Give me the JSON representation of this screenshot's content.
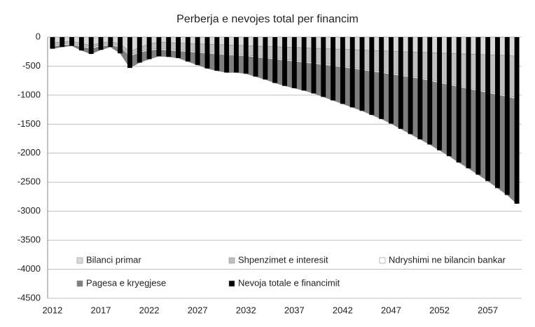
{
  "chart_data": {
    "type": "combo",
    "title": "Perberja e nevojes total per financim",
    "categories": [
      "2012",
      null,
      null,
      null,
      null,
      "2017",
      null,
      null,
      null,
      null,
      "2022",
      null,
      null,
      null,
      null,
      "2027",
      null,
      null,
      null,
      null,
      "2032",
      null,
      null,
      null,
      null,
      "2037",
      null,
      null,
      null,
      null,
      "2042",
      null,
      null,
      null,
      null,
      "2047",
      null,
      null,
      null,
      null,
      "2052",
      null,
      null,
      null,
      null,
      "2057",
      null,
      null,
      null
    ],
    "series": [
      {
        "name": "Bilanci primar",
        "type": "area",
        "color": "#d9d9d9",
        "values": [
          -100,
          -80,
          -70,
          -110,
          -140,
          -100,
          -80,
          -120,
          -250,
          -180,
          -120,
          -90,
          -96,
          -103,
          -109,
          -115,
          -122,
          -128,
          -135,
          -141,
          -147,
          -154,
          -160,
          -166,
          -173,
          -179,
          -185,
          -192,
          -198,
          -204,
          -211,
          -217,
          -223,
          -230,
          -236,
          -242,
          -249,
          -255,
          -261,
          -268,
          -274,
          -280,
          -287,
          -293,
          -299,
          -306,
          -312,
          -318,
          -330
        ]
      },
      {
        "name": "Shpenzimet e interesit",
        "type": "area",
        "color": "#bfbfbf",
        "values": [
          -40,
          -40,
          -40,
          -40,
          -40,
          -40,
          -40,
          -40,
          -60,
          -70,
          -90,
          -110,
          -115,
          -121,
          -127,
          -133,
          -139,
          -145,
          -151,
          -157,
          -163,
          -174,
          -185,
          -197,
          -209,
          -221,
          -234,
          -247,
          -260,
          -274,
          -289,
          -306,
          -324,
          -342,
          -361,
          -380,
          -399,
          -418,
          -438,
          -467,
          -496,
          -523,
          -551,
          -579,
          -607,
          -635,
          -663,
          -691,
          -720
        ]
      },
      {
        "name": "Ndryshimi ne bilancin bankar",
        "type": "area",
        "color": "#ffffff",
        "values": [
          -20,
          -20,
          -20,
          -20,
          -20,
          -20,
          -20,
          -20,
          -20,
          -20,
          -20,
          -20,
          -20,
          -20,
          -20,
          -20,
          -20,
          -20,
          -20,
          -20,
          -20,
          -20,
          -20,
          -20,
          -20,
          -20,
          -20,
          -20,
          -20,
          -20,
          -20,
          -20,
          -20,
          -20,
          -20,
          -20,
          -20,
          -20,
          -20,
          -20,
          -20,
          -20,
          -20,
          -20,
          -20,
          -20,
          -20,
          -20,
          -20
        ]
      },
      {
        "name": "Pagesa e kryegjese",
        "type": "area",
        "color": "#7f7f7f",
        "values": [
          -40,
          -30,
          -20,
          -60,
          -90,
          -60,
          -30,
          -100,
          -200,
          -170,
          -150,
          -110,
          -109,
          -116,
          -164,
          -212,
          -259,
          -287,
          -304,
          -292,
          -300,
          -332,
          -365,
          -407,
          -438,
          -460,
          -481,
          -511,
          -552,
          -592,
          -630,
          -667,
          -703,
          -748,
          -793,
          -848,
          -912,
          -977,
          -1041,
          -1095,
          -1160,
          -1227,
          -1302,
          -1368,
          -1444,
          -1519,
          -1605,
          -1691,
          -1800
        ]
      },
      {
        "name": "Nevoja totale e financimit",
        "type": "bar",
        "color": "#000000",
        "values": [
          -200,
          -170,
          -150,
          -230,
          -290,
          -220,
          -170,
          -280,
          -530,
          -440,
          -380,
          -330,
          -340,
          -360,
          -420,
          -480,
          -540,
          -580,
          -610,
          -610,
          -630,
          -680,
          -730,
          -790,
          -840,
          -880,
          -920,
          -970,
          -1030,
          -1090,
          -1150,
          -1210,
          -1270,
          -1340,
          -1410,
          -1490,
          -1580,
          -1670,
          -1760,
          -1850,
          -1950,
          -2050,
          -2160,
          -2260,
          -2370,
          -2480,
          -2600,
          -2720,
          -2870
        ]
      }
    ],
    "ylim": [
      -4500,
      0
    ],
    "yticks": [
      0,
      -500,
      -1000,
      -1500,
      -2000,
      -2500,
      -3000,
      -3500,
      -4000,
      -4500
    ],
    "grid": true,
    "legend": "bottom"
  }
}
